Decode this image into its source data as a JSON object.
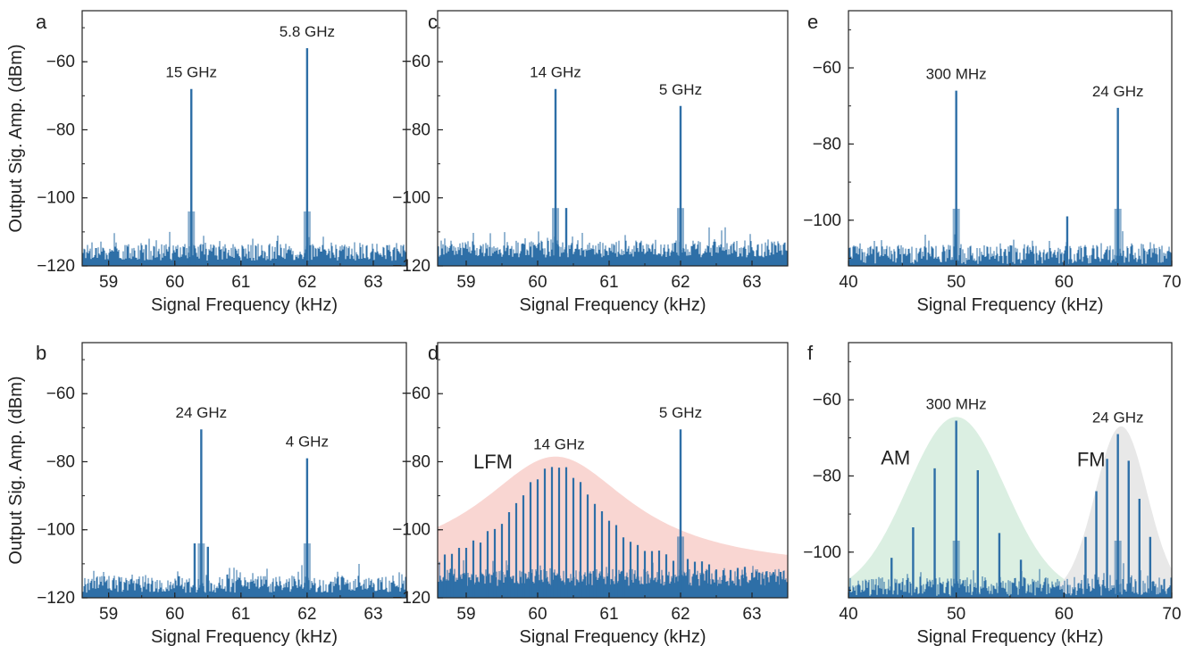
{
  "chart_data": [
    {
      "panel": "a",
      "type": "line",
      "xlabel": "Signal Frequency (kHz)",
      "ylabel": "Output Sig. Amp. (dBm)",
      "xlim": [
        58.6,
        63.5
      ],
      "ylim": [
        -120,
        -45
      ],
      "xticks": [
        59,
        60,
        61,
        62,
        63
      ],
      "xtick_labels": [
        "59",
        "60",
        "61",
        "62",
        "63"
      ],
      "yticks": [
        -120,
        -100,
        -80,
        -60
      ],
      "ytick_labels": [
        "−120",
        "−100",
        "−80",
        "−60"
      ],
      "noise_floor": -116,
      "peaks": [
        {
          "x": 60.25,
          "y": -68,
          "label": "15 GHz",
          "label_pos": "above"
        },
        {
          "x": 62.0,
          "y": -56,
          "label": "5.8 GHz",
          "label_pos": "above"
        }
      ],
      "series_color": "#2e6fa7"
    },
    {
      "panel": "b",
      "type": "line",
      "xlabel": "Signal Frequency (kHz)",
      "ylabel": "Output Sig. Amp. (dBm)",
      "xlim": [
        58.6,
        63.5
      ],
      "ylim": [
        -120,
        -45
      ],
      "xticks": [
        59,
        60,
        61,
        62,
        63
      ],
      "xtick_labels": [
        "59",
        "60",
        "61",
        "62",
        "63"
      ],
      "yticks": [
        -120,
        -100,
        -80,
        -60
      ],
      "ytick_labels": [
        "−120",
        "−100",
        "−80",
        "−60"
      ],
      "noise_floor": -116,
      "peaks": [
        {
          "x": 60.4,
          "y": -70.5,
          "label": "24 GHz",
          "label_pos": "above"
        },
        {
          "x": 62.0,
          "y": -79,
          "label": "4 GHz",
          "label_pos": "above"
        },
        {
          "x": 60.3,
          "y": -104,
          "label": ""
        },
        {
          "x": 60.5,
          "y": -105,
          "label": ""
        }
      ],
      "series_color": "#2e6fa7"
    },
    {
      "panel": "c",
      "type": "line",
      "xlabel": "Signal Frequency (kHz)",
      "ylabel": "",
      "xlim": [
        58.6,
        63.5
      ],
      "ylim": [
        -120,
        -45
      ],
      "xticks": [
        59,
        60,
        61,
        62,
        63
      ],
      "xtick_labels": [
        "59",
        "60",
        "61",
        "62",
        "63"
      ],
      "yticks": [
        -120,
        -100,
        -80,
        -60
      ],
      "ytick_labels": [
        "−120",
        "−100",
        "−80",
        "−60"
      ],
      "noise_floor": -115,
      "peaks": [
        {
          "x": 60.25,
          "y": -68,
          "label": "14 GHz",
          "label_pos": "above"
        },
        {
          "x": 62.0,
          "y": -73,
          "label": "5 GHz",
          "label_pos": "above"
        },
        {
          "x": 60.4,
          "y": -103,
          "label": ""
        }
      ],
      "series_color": "#2e6fa7"
    },
    {
      "panel": "d",
      "type": "line",
      "xlabel": "Signal Frequency (kHz)",
      "ylabel": "",
      "xlim": [
        58.6,
        63.5
      ],
      "ylim": [
        -120,
        -45
      ],
      "xticks": [
        59,
        60,
        61,
        62,
        63
      ],
      "xtick_labels": [
        "59",
        "60",
        "61",
        "62",
        "63"
      ],
      "yticks": [
        -120,
        -100,
        -80,
        -60
      ],
      "ytick_labels": [
        "−120",
        "−100",
        "−80",
        "−60"
      ],
      "noise_floor": -114,
      "peaks": [
        {
          "x": 62.0,
          "y": -70.5,
          "label": "5 GHz",
          "label_pos": "above"
        }
      ],
      "comb": {
        "center": 60.25,
        "spacing": 0.1,
        "from": 58.7,
        "to": 63.4,
        "peak_level": -81,
        "width": 0.75,
        "floor": -114,
        "label": "14 GHz"
      },
      "envelope": {
        "center": 60.25,
        "peak_level": -78.5,
        "width": 1.3,
        "floor": -112,
        "color": "#f9d6d2"
      },
      "region_labels": [
        {
          "text": "LFM",
          "x": 59.1,
          "y": -82
        }
      ],
      "series_color": "#2e6fa7"
    },
    {
      "panel": "e",
      "type": "line",
      "xlabel": "Signal Frequency (kHz)",
      "ylabel": "",
      "xlim": [
        40,
        70
      ],
      "ylim": [
        -112,
        -45
      ],
      "xticks": [
        40,
        50,
        60,
        70
      ],
      "xtick_labels": [
        "40",
        "50",
        "60",
        "70"
      ],
      "yticks": [
        -100,
        -80,
        -60
      ],
      "ytick_labels": [
        "−100",
        "−80",
        "−60"
      ],
      "noise_floor": -109,
      "peaks": [
        {
          "x": 50,
          "y": -66,
          "label": "300 MHz",
          "label_pos": "above"
        },
        {
          "x": 65,
          "y": -70.5,
          "label": "24 GHz",
          "label_pos": "above"
        },
        {
          "x": 60.3,
          "y": -99,
          "label": ""
        }
      ],
      "series_color": "#2e6fa7"
    },
    {
      "panel": "f",
      "type": "line",
      "xlabel": "Signal Frequency (kHz)",
      "ylabel": "",
      "xlim": [
        40,
        70
      ],
      "ylim": [
        -112,
        -45
      ],
      "xticks": [
        40,
        50,
        60,
        70
      ],
      "xtick_labels": [
        "40",
        "50",
        "60",
        "70"
      ],
      "yticks": [
        -100,
        -80,
        -60
      ],
      "ytick_labels": [
        "−100",
        "−80",
        "−60"
      ],
      "noise_floor": -109,
      "peaks": [
        {
          "x": 50,
          "y": -65.5,
          "label": "300 MHz",
          "label_pos": "above"
        },
        {
          "x": 48,
          "y": -78,
          "label": ""
        },
        {
          "x": 52,
          "y": -78.5,
          "label": ""
        },
        {
          "x": 46,
          "y": -93.5,
          "label": ""
        },
        {
          "x": 54,
          "y": -95,
          "label": ""
        },
        {
          "x": 44,
          "y": -101.5,
          "label": ""
        },
        {
          "x": 56,
          "y": -102,
          "label": ""
        },
        {
          "x": 65,
          "y": -69,
          "label": "24 GHz",
          "label_pos": "above"
        },
        {
          "x": 64,
          "y": -75.5,
          "label": ""
        },
        {
          "x": 66,
          "y": -76,
          "label": ""
        },
        {
          "x": 63,
          "y": -84,
          "label": ""
        },
        {
          "x": 67,
          "y": -86,
          "label": ""
        },
        {
          "x": 62,
          "y": -96,
          "label": ""
        },
        {
          "x": 68,
          "y": -96,
          "label": ""
        }
      ],
      "envelopes": [
        {
          "center": 50,
          "peak_level": -64.5,
          "width": 4.5,
          "floor": -111,
          "color": "#dbefe2"
        },
        {
          "center": 65.3,
          "peak_level": -67,
          "width": 2.4,
          "floor": -111,
          "color": "#e8e8e8"
        }
      ],
      "region_labels": [
        {
          "text": "AM",
          "x": 43,
          "y": -77
        },
        {
          "text": "FM",
          "x": 61.2,
          "y": -77.5
        }
      ],
      "series_color": "#2e6fa7"
    }
  ]
}
